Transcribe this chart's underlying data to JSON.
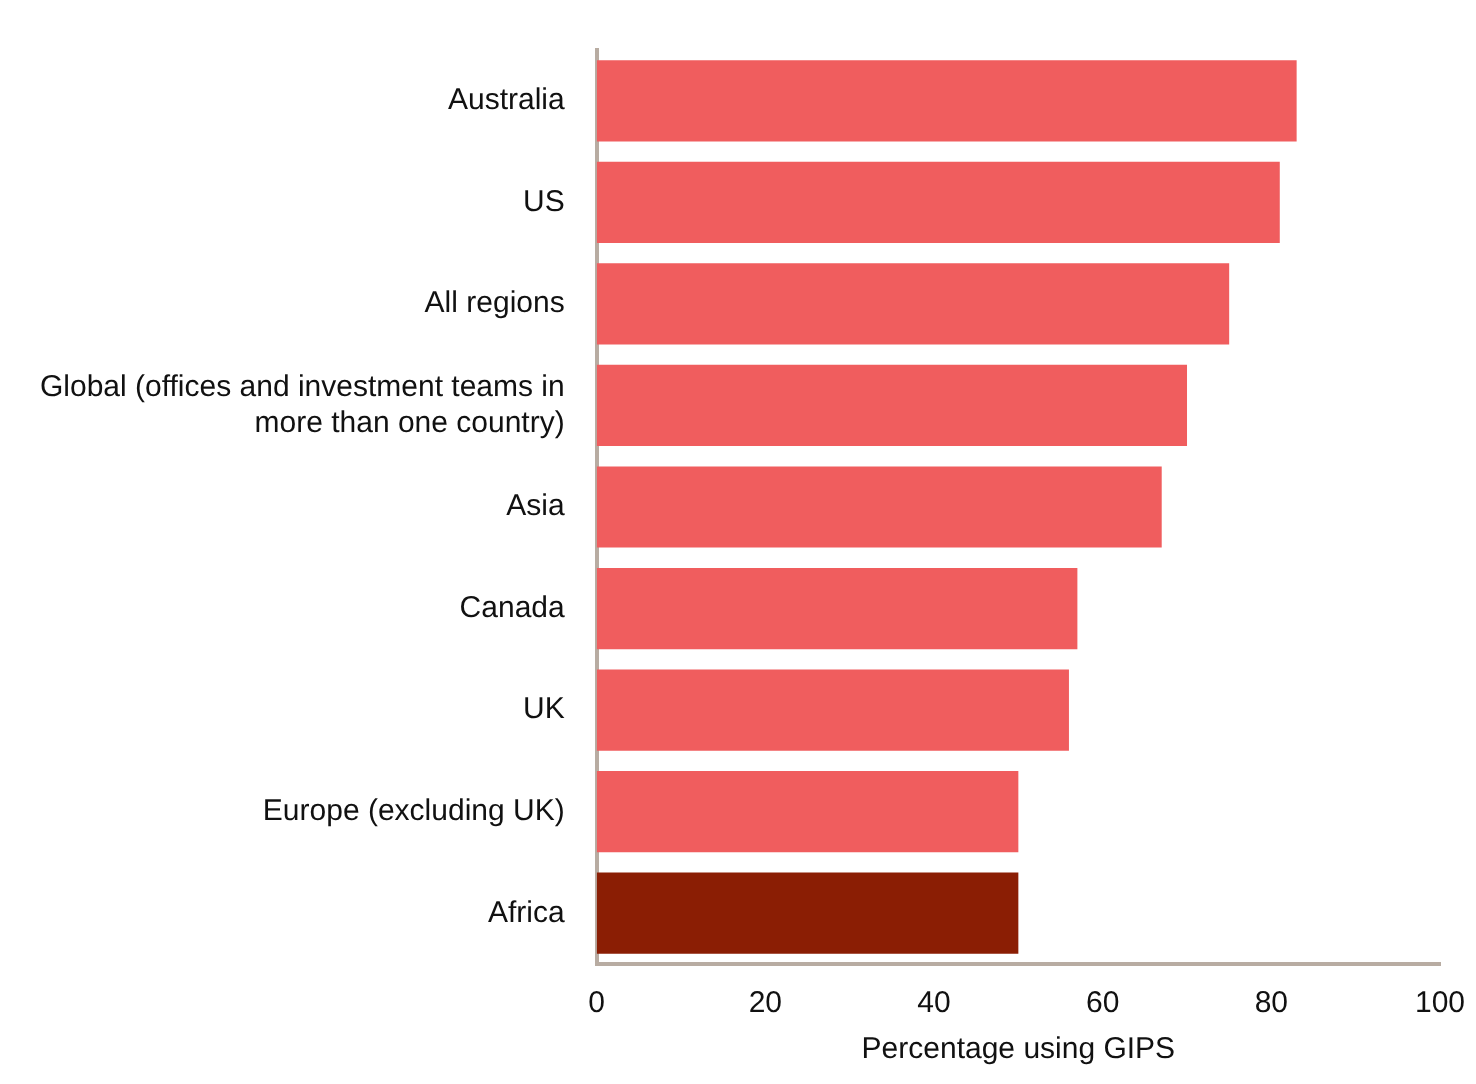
{
  "chart_data": {
    "type": "bar",
    "orientation": "horizontal",
    "xlabel": "Percentage using GIPS",
    "categories": [
      "Australia",
      "US",
      "All regions",
      "Global (offices and investment teams in more than one country)",
      "Asia",
      "Canada",
      "UK",
      "Europe (excluding UK)",
      "Africa"
    ],
    "values": [
      83,
      81,
      75,
      70,
      67,
      57,
      56,
      50,
      50
    ],
    "colors": [
      "#f05d5e",
      "#f05d5e",
      "#f05d5e",
      "#f05d5e",
      "#f05d5e",
      "#f05d5e",
      "#f05d5e",
      "#f05d5e",
      "#8b1e04"
    ],
    "xlim": [
      0,
      100
    ],
    "xticks": [
      0,
      20,
      40,
      60,
      80,
      100
    ],
    "grid": false,
    "legend": false
  }
}
